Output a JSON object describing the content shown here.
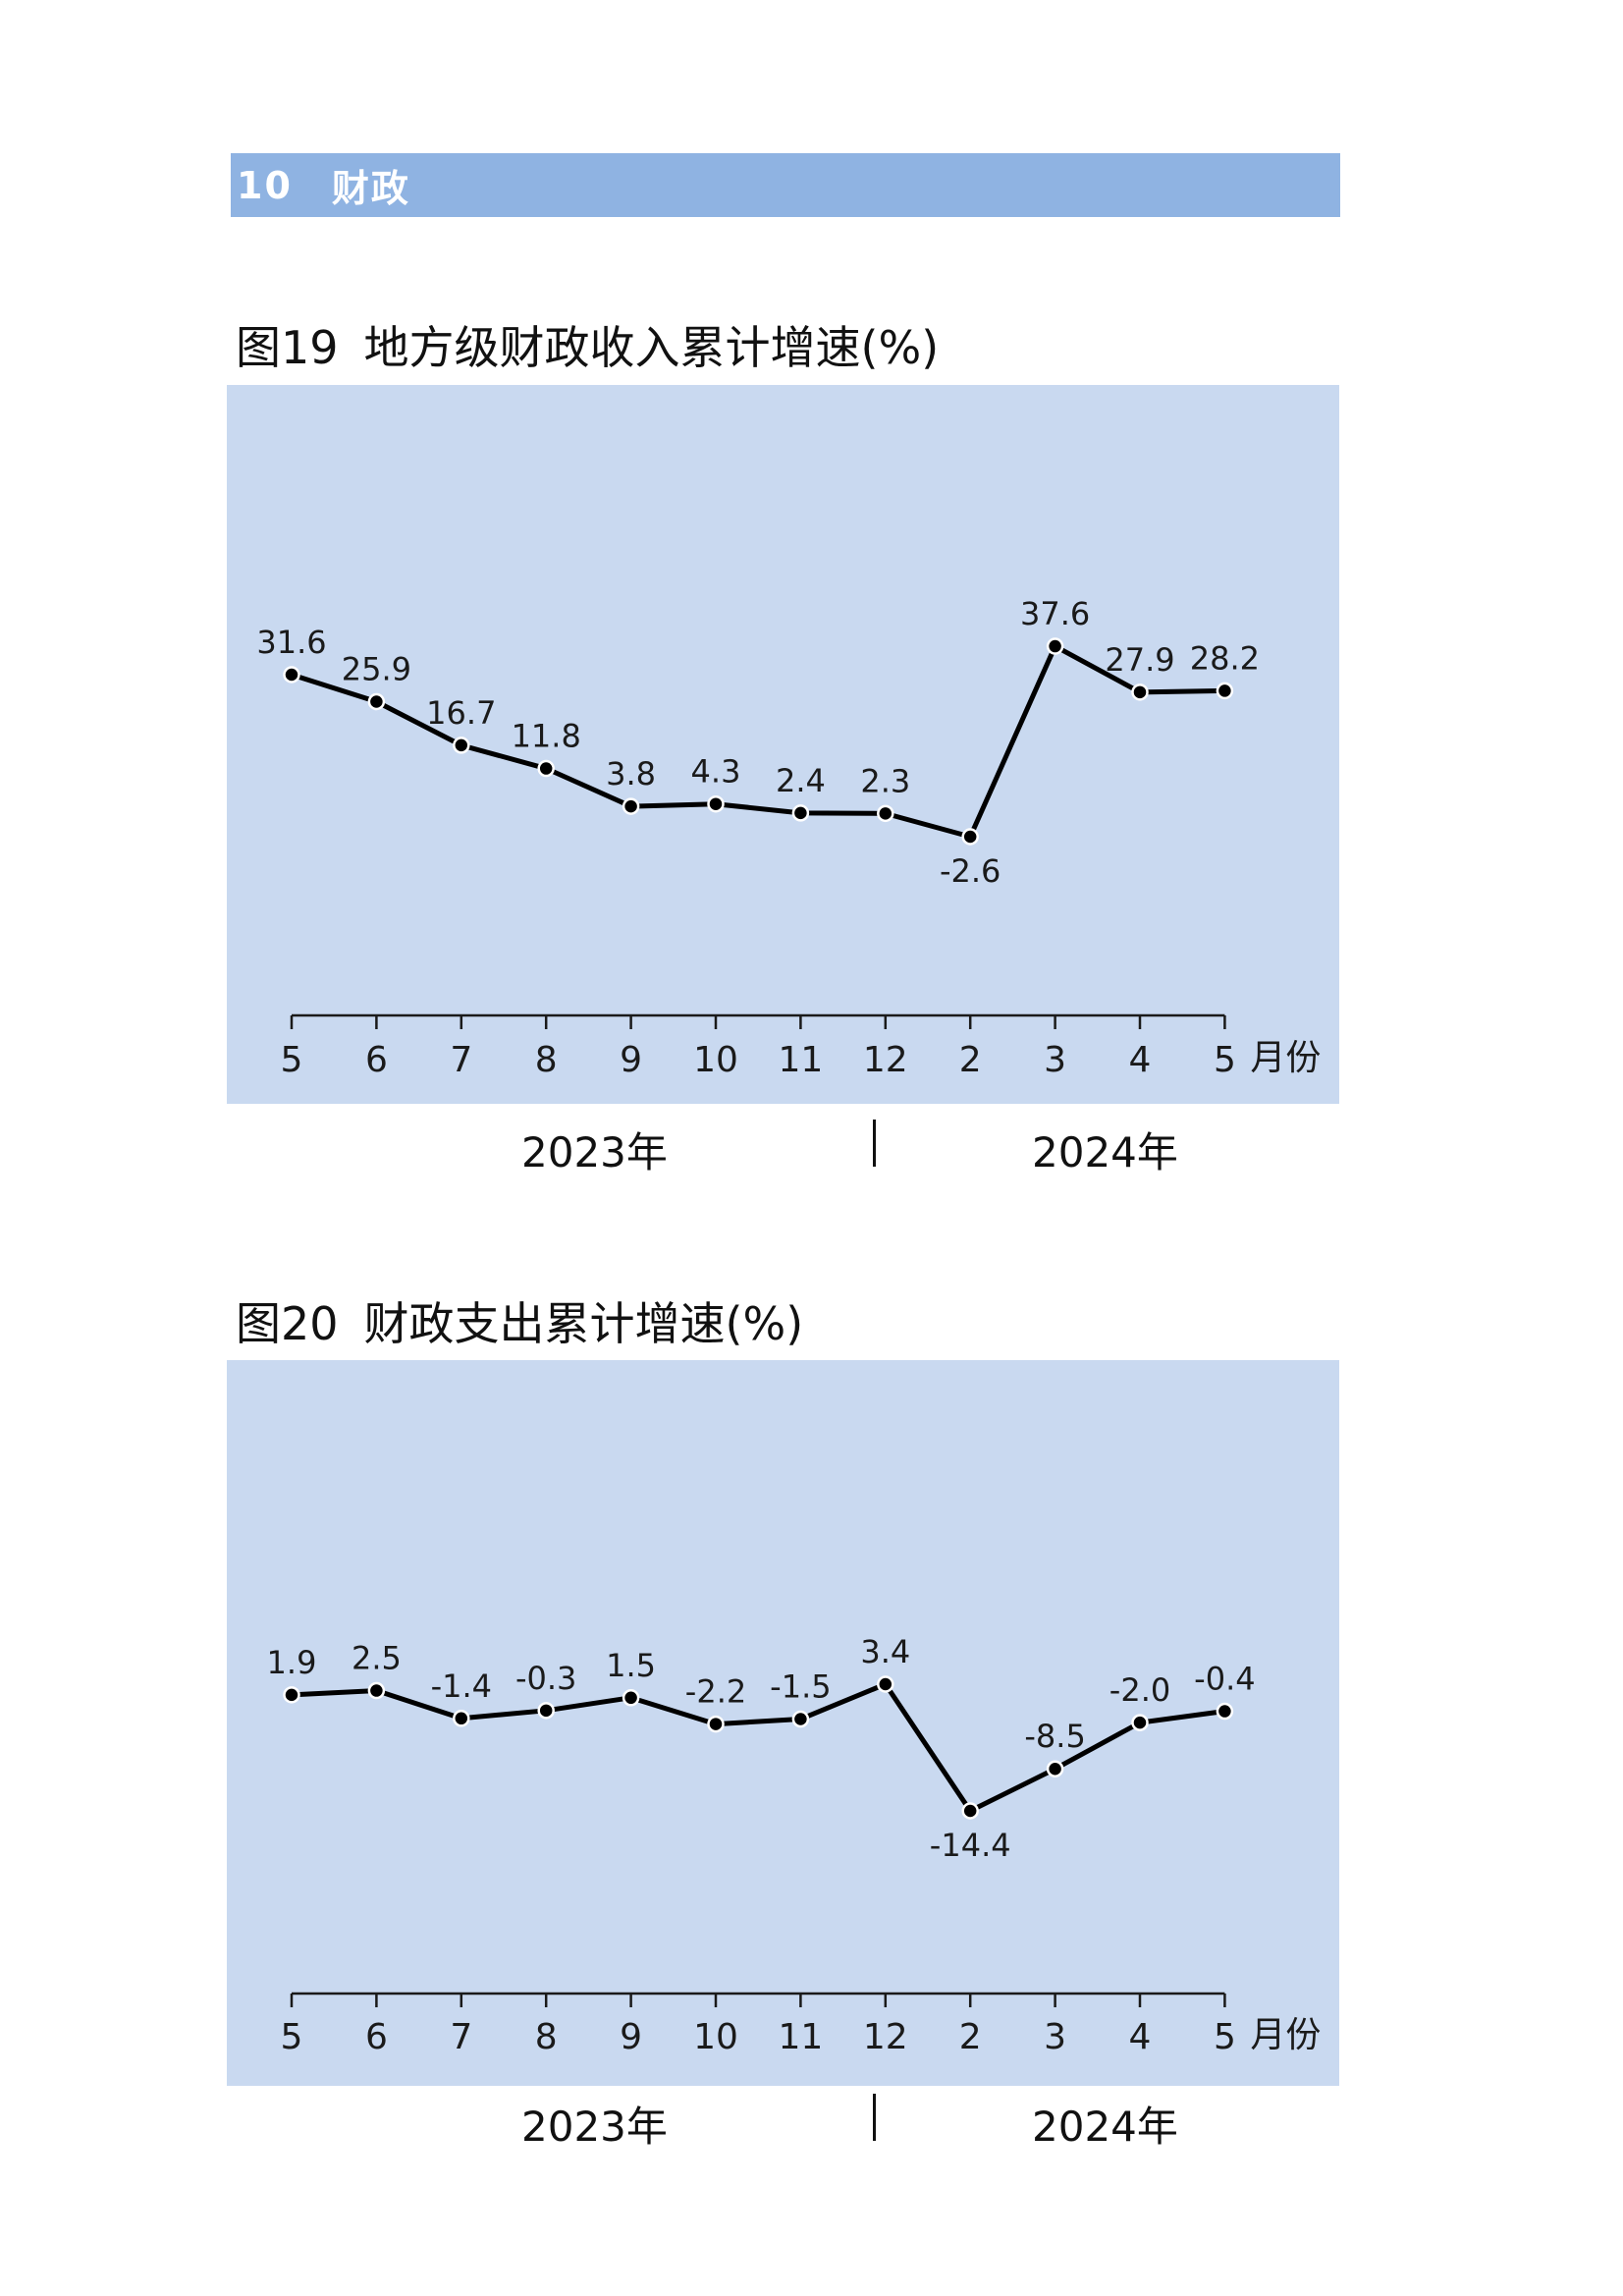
{
  "section": {
    "number": "10",
    "title": "财政"
  },
  "colors": {
    "section_bar": "#8fb3e2",
    "panel": "#c9d9f0",
    "line": "#000000",
    "marker_fill": "#000000",
    "marker_stroke": "#ffffff"
  },
  "x_unit": "月份",
  "year_axis": {
    "left": "2023年",
    "right": "2024年"
  },
  "chart_data": [
    {
      "type": "line",
      "fig_no": "图19",
      "title": "地方级财政收入累计增速(%)",
      "categories": [
        "5",
        "6",
        "7",
        "8",
        "9",
        "10",
        "11",
        "12",
        "2",
        "3",
        "4",
        "5"
      ],
      "values": [
        31.6,
        25.9,
        16.7,
        11.8,
        3.8,
        4.3,
        2.4,
        2.3,
        -2.6,
        37.6,
        27.9,
        28.2
      ],
      "labels": [
        "31.6",
        "25.9",
        "16.7",
        "11.8",
        "3.8",
        "4.3",
        "2.4",
        "2.3",
        "-2.6",
        "37.6",
        "27.9",
        "28.2"
      ],
      "label_below": [
        false,
        false,
        false,
        false,
        false,
        false,
        false,
        false,
        true,
        false,
        false,
        false
      ],
      "years": [
        "2023年",
        "2024年"
      ],
      "grid": false,
      "legend": "none"
    },
    {
      "type": "line",
      "fig_no": "图20",
      "title": "财政支出累计增速(%)",
      "categories": [
        "5",
        "6",
        "7",
        "8",
        "9",
        "10",
        "11",
        "12",
        "2",
        "3",
        "4",
        "5"
      ],
      "values": [
        1.9,
        2.5,
        -1.4,
        -0.3,
        1.5,
        -2.2,
        -1.5,
        3.4,
        -14.4,
        -8.5,
        -2.0,
        -0.4
      ],
      "labels": [
        "1.9",
        "2.5",
        "-1.4",
        "-0.3",
        "1.5",
        "-2.2",
        "-1.5",
        "3.4",
        "-14.4",
        "-8.5",
        "-2.0",
        "-0.4"
      ],
      "label_below": [
        false,
        false,
        false,
        false,
        false,
        false,
        false,
        false,
        true,
        false,
        false,
        false
      ],
      "years": [
        "2023年",
        "2024年"
      ],
      "grid": false,
      "legend": "none"
    }
  ]
}
